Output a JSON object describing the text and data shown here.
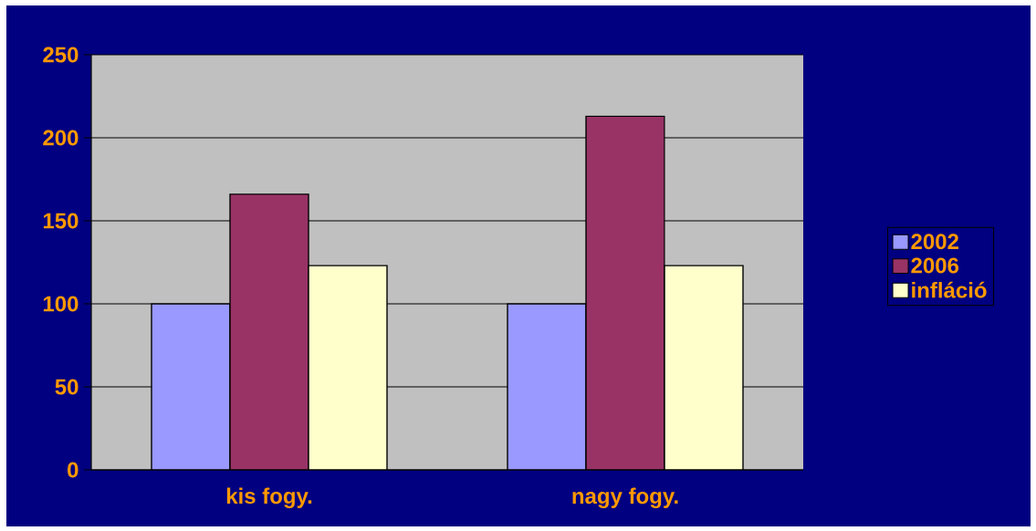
{
  "chart_data": {
    "type": "bar",
    "categories": [
      "kis fogy.",
      "nagy fogy."
    ],
    "series": [
      {
        "name": "2002",
        "color": "#9999ff",
        "values": [
          100,
          100
        ]
      },
      {
        "name": "2006",
        "color": "#993366",
        "values": [
          166,
          213
        ]
      },
      {
        "name": "infláció",
        "color": "#ffffcc",
        "values": [
          123,
          123
        ]
      }
    ],
    "ylim": [
      0,
      250
    ],
    "yticks": [
      0,
      50,
      100,
      150,
      200,
      250
    ],
    "grid": "y",
    "legend": "right"
  }
}
